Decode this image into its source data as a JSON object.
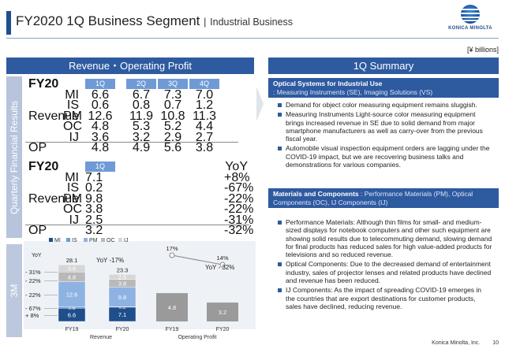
{
  "header": {
    "title": "FY2020 1Q Business Segment",
    "separator": "|",
    "subtitle": "Industrial Business",
    "logo_text": "KONICA MINOLTA"
  },
  "unit": "[¥ billions]",
  "left": {
    "heading": "Revenue・Operating Profit",
    "side_tab_top": "Quarterly Financial Results",
    "side_tab_bottom": "3M"
  },
  "table1": {
    "year": "FY20",
    "quarters": [
      "1Q",
      "2Q",
      "3Q",
      "4Q"
    ],
    "revenue_label": "Revenue",
    "rows": [
      {
        "code": "MI",
        "values": [
          "6.6",
          "6.7",
          "7.3",
          "7.0"
        ]
      },
      {
        "code": "IS",
        "values": [
          "0.6",
          "0.8",
          "0.7",
          "1.2"
        ]
      },
      {
        "code": "PM",
        "values": [
          "12.6",
          "11.9",
          "10.8",
          "11.3"
        ]
      },
      {
        "code": "OC",
        "values": [
          "4.8",
          "5.3",
          "5.2",
          "4.4"
        ]
      },
      {
        "code": "IJ",
        "values": [
          "3.6",
          "3.2",
          "2.9",
          "2.7"
        ]
      }
    ],
    "op": {
      "label": "OP",
      "values": [
        "4.8",
        "4.9",
        "5.6",
        "3.8"
      ]
    }
  },
  "table2": {
    "year": "FY20",
    "quarter": "1Q",
    "yoy_label": "YoY",
    "revenue_label": "Revenue",
    "rows": [
      {
        "code": "MI",
        "value": "7.1",
        "yoy": "+8%"
      },
      {
        "code": "IS",
        "value": "0.2",
        "yoy": "-67%"
      },
      {
        "code": "PM",
        "value": "9.8",
        "yoy": "-22%"
      },
      {
        "code": "OC",
        "value": "3.8",
        "yoy": "-22%"
      },
      {
        "code": "IJ",
        "value": "2.5",
        "yoy": "-31%"
      }
    ],
    "op": {
      "label": "OP",
      "value": "3.2",
      "yoy": "-32%"
    }
  },
  "chart_data": [
    {
      "type": "bar",
      "stacked": true,
      "title": "Revenue",
      "categories": [
        "FY19",
        "FY20"
      ],
      "legend": [
        "MI",
        "IS",
        "PM",
        "OC",
        "IJ"
      ],
      "legend_position": "top",
      "series": [
        {
          "name": "MI",
          "values": [
            6.6,
            7.1
          ],
          "color": "#1f4e8c"
        },
        {
          "name": "IS",
          "values": [
            0.6,
            0.2
          ],
          "color": "#6e9bd3"
        },
        {
          "name": "PM",
          "values": [
            12.6,
            9.8
          ],
          "color": "#8eb3e2"
        },
        {
          "name": "OC",
          "values": [
            4.8,
            3.8
          ],
          "color": "#b9b9b9"
        },
        {
          "name": "IJ",
          "values": [
            3.6,
            2.5
          ],
          "color": "#d6d6d6"
        }
      ],
      "totals": [
        "28.1",
        "23.3"
      ],
      "yoy_labels": [
        "- 31%",
        "- 22%",
        "- 22%",
        "- 67%",
        "+ 8%"
      ],
      "yoy_header": "YoY",
      "total_yoy": "YoY -17%"
    },
    {
      "type": "bar",
      "title": "Operating Profit",
      "categories": [
        "FY19",
        "FY20"
      ],
      "values": [
        4.8,
        3.2
      ],
      "color": "#9a9a9a",
      "value_labels": [
        "4.8",
        "3.2"
      ],
      "margin_line": {
        "values": [
          17,
          14
        ],
        "labels": [
          "17%",
          "14%"
        ]
      },
      "total_yoy": "YoY - 32%"
    }
  ],
  "summary": {
    "heading": "1Q Summary",
    "box1": {
      "title": "Optical Systems for Industrial Use",
      "sub": ": Measuring Instruments (SE), Imaging Solutions (VS)"
    },
    "bullets1": [
      "Demand for object color measuring equipment remains sluggish.",
      "Measuring Instruments Light-source color measuring equipment brings increased revenue in SE due to solid demand from major smartphone manufacturers as well as carry-over from the previous fiscal year.",
      "Automobile visual inspection equipment orders are lagging under the COVID-19 impact, but we are recovering business talks and demonstrations for various companies."
    ],
    "box2": {
      "title": "Materials and Components",
      "sub": ": Performance Materials (PM), Optical Components (OC), IJ Components (IJ)"
    },
    "bullets2": [
      "Performance Materials: Although thin films for small- and medium-sized displays for notebook computers and other such equipment are showing solid results due to telecommuting demand, slowing demand for final products has reduced sales for high value-added products for televisions and so reduced revenue.",
      "Optical Components: Due to the decreased demand of entertainment industry, sales of projector lenses and related products have declined and revenue has been reduced.",
      "IJ Components: As the impact of spreading COVID-19 emerges in the countries that are export destinations for customer products, sales have declined, reducing revenue."
    ]
  },
  "footer": {
    "company": "Konica Minolta, Inc.",
    "page": "10"
  }
}
